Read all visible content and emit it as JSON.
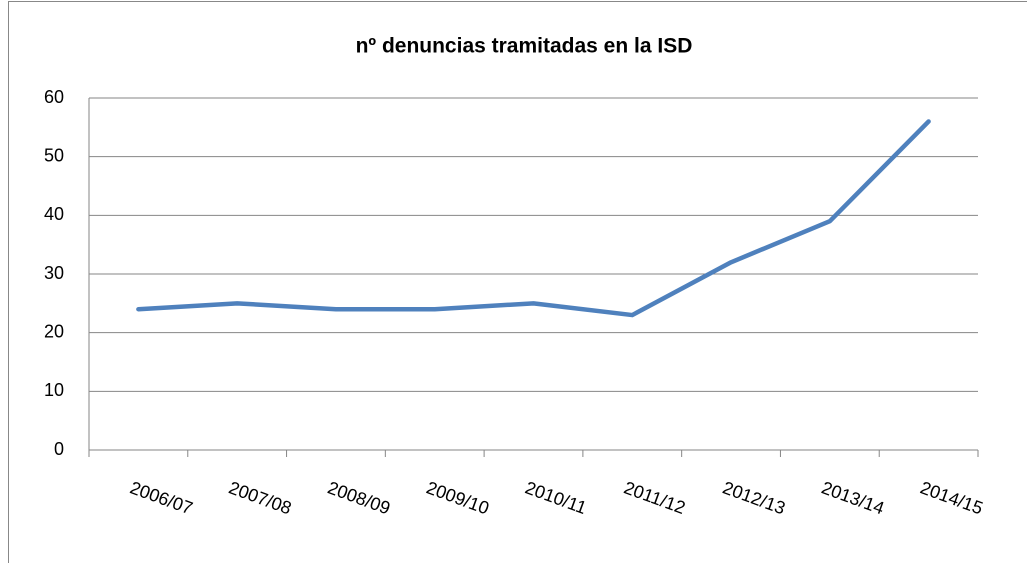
{
  "chart_data": {
    "type": "line",
    "title": "nº denuncias tramitadas en la ISD",
    "categories": [
      "2006/07",
      "2007/08",
      "2008/09",
      "2009/10",
      "2010/11",
      "2011/12",
      "2012/13",
      "2013/14",
      "2014/15"
    ],
    "values": [
      24,
      25,
      24,
      24,
      25,
      23,
      32,
      39,
      56
    ],
    "color": "#4f81bd",
    "ylim": [
      0,
      60
    ],
    "yticks": [
      0,
      10,
      20,
      30,
      40,
      50,
      60
    ],
    "grid": true
  }
}
